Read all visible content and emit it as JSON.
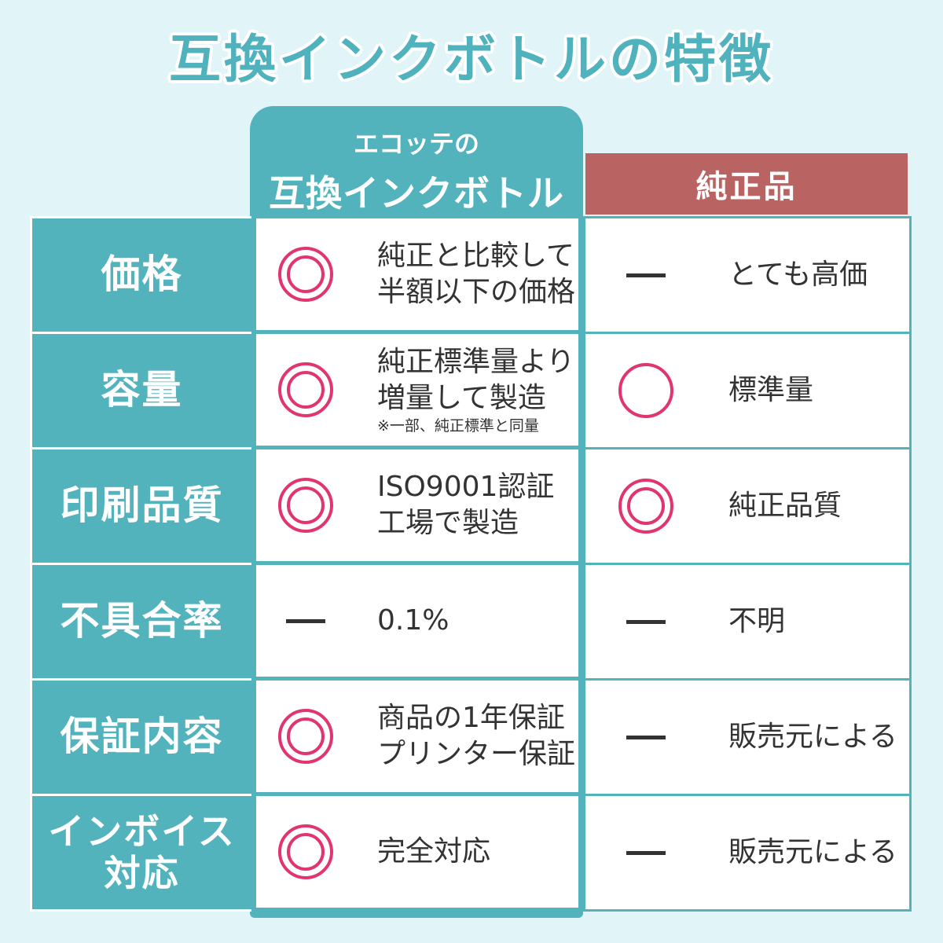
{
  "title": "互換インクボトルの特徴",
  "columns": {
    "ecotte_line1": "エコッテの",
    "ecotte_line2": "互換インクボトル",
    "genuine": "純正品"
  },
  "colors": {
    "teal": "#52b3bd",
    "genuine_red": "#b96363",
    "mark": "#e0356e",
    "background": "#e1f4f7"
  },
  "rows": [
    {
      "label": "価格",
      "ecotte": {
        "mark": "double-circle",
        "text": [
          "純正と比較して",
          "半額以下の価格"
        ]
      },
      "genuine": {
        "mark": "dash",
        "text": [
          "とても高価"
        ]
      }
    },
    {
      "label": "容量",
      "ecotte": {
        "mark": "double-circle",
        "text": [
          "純正標準量より",
          "増量して製造"
        ],
        "note": "※一部、純正標準と同量"
      },
      "genuine": {
        "mark": "circle",
        "text": [
          "標準量"
        ]
      }
    },
    {
      "label": "印刷品質",
      "ecotte": {
        "mark": "double-circle",
        "text": [
          "ISO9001認証",
          "工場で製造"
        ]
      },
      "genuine": {
        "mark": "double-circle",
        "text": [
          "純正品質"
        ]
      }
    },
    {
      "label": "不具合率",
      "ecotte": {
        "mark": "dash",
        "text": [
          "0.1%"
        ]
      },
      "genuine": {
        "mark": "dash",
        "text": [
          "不明"
        ]
      }
    },
    {
      "label": "保証内容",
      "ecotte": {
        "mark": "double-circle",
        "text": [
          "商品の1年保証",
          "プリンター保証"
        ]
      },
      "genuine": {
        "mark": "dash",
        "text": [
          "販売元による"
        ]
      }
    },
    {
      "label": "インボイス対応",
      "label_lines": [
        "インボイス",
        "対応"
      ],
      "ecotte": {
        "mark": "double-circle",
        "text": [
          "完全対応"
        ]
      },
      "genuine": {
        "mark": "dash",
        "text": [
          "販売元による"
        ]
      }
    }
  ]
}
